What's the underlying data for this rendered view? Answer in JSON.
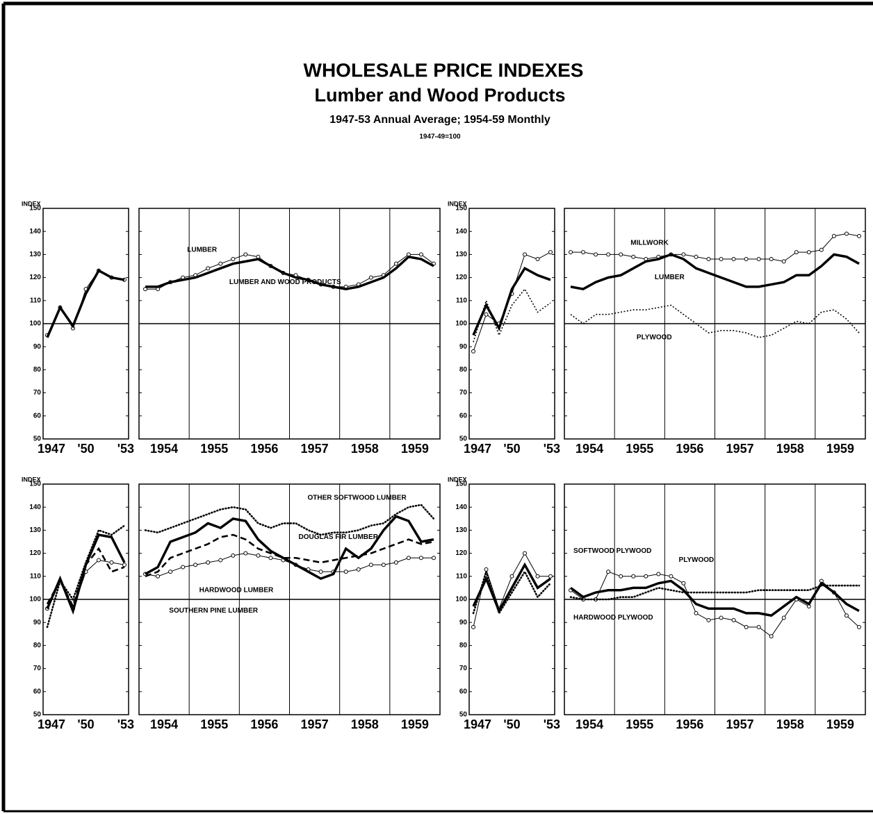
{
  "title": "WHOLESALE PRICE INDEXES",
  "subtitle": "Lumber and Wood Products",
  "period": "1947-53 Annual Average; 1954-59 Monthly",
  "base": "1947-49=100",
  "chart_data": [
    {
      "type": "line",
      "y_label": "INDEX",
      "ylim": [
        50,
        150
      ],
      "yticks": [
        50,
        60,
        70,
        80,
        90,
        100,
        110,
        120,
        130,
        140,
        150
      ],
      "baseline": 100,
      "categories": [
        "1947",
        null,
        null,
        "'50",
        null,
        null,
        "'53"
      ],
      "xlim": [
        1954,
        1960
      ],
      "xticks": [
        {
          "value": 1954.5,
          "label": "1954"
        },
        {
          "value": 1955.5,
          "label": "1955"
        },
        {
          "value": 1956.5,
          "label": "1956"
        },
        {
          "value": 1957.5,
          "label": "1957"
        },
        {
          "value": 1958.5,
          "label": "1958"
        },
        {
          "value": 1959.5,
          "label": "1959"
        }
      ],
      "xgrid": [
        1955,
        1956,
        1957,
        1958,
        1959
      ],
      "x": [
        1954.125,
        1954.375,
        1954.625,
        1954.875,
        1955.125,
        1955.375,
        1955.625,
        1955.875,
        1956.125,
        1956.375,
        1956.625,
        1956.875,
        1957.125,
        1957.375,
        1957.625,
        1957.875,
        1958.125,
        1958.375,
        1958.625,
        1958.875,
        1959.125,
        1959.375,
        1959.625,
        1959.875
      ],
      "series": [
        {
          "name": "LUMBER",
          "color": "#000000",
          "style": "circles",
          "annual_values": [
            95,
            107,
            98,
            115,
            123,
            120,
            119
          ],
          "values": [
            115,
            115,
            118,
            120,
            121,
            124,
            126,
            128,
            130,
            129,
            125,
            122,
            121,
            119,
            117,
            116,
            116,
            117,
            120,
            121,
            126,
            130,
            130,
            126
          ]
        },
        {
          "name": "LUMBER AND WOOD PRODUCTS",
          "color": "#000000",
          "style": "thick",
          "annual_values": [
            94,
            107,
            99,
            113,
            123,
            120,
            119
          ],
          "values": [
            116,
            116,
            118,
            119,
            120,
            122,
            124,
            126,
            127,
            128,
            125,
            122,
            120,
            119,
            117,
            116,
            115,
            116,
            118,
            120,
            124,
            129,
            128,
            125
          ]
        }
      ]
    },
    {
      "type": "line",
      "y_label": "INDEX",
      "ylim": [
        50,
        150
      ],
      "yticks": [
        50,
        60,
        70,
        80,
        90,
        100,
        110,
        120,
        130,
        140,
        150
      ],
      "baseline": 100,
      "categories": [
        "1947",
        null,
        null,
        "'50",
        null,
        null,
        "'53"
      ],
      "xlim": [
        1954,
        1960
      ],
      "xticks": [
        {
          "value": 1954.5,
          "label": "1954"
        },
        {
          "value": 1955.5,
          "label": "1955"
        },
        {
          "value": 1956.5,
          "label": "1956"
        },
        {
          "value": 1957.5,
          "label": "1957"
        },
        {
          "value": 1958.5,
          "label": "1958"
        },
        {
          "value": 1959.5,
          "label": "1959"
        }
      ],
      "xgrid": [
        1955,
        1956,
        1957,
        1958,
        1959
      ],
      "x": [
        1954.125,
        1954.375,
        1954.625,
        1954.875,
        1955.125,
        1955.375,
        1955.625,
        1955.875,
        1956.125,
        1956.375,
        1956.625,
        1956.875,
        1957.125,
        1957.375,
        1957.625,
        1957.875,
        1958.125,
        1958.375,
        1958.625,
        1958.875,
        1959.125,
        1959.375,
        1959.625,
        1959.875
      ],
      "series": [
        {
          "name": "MILLWORK",
          "color": "#000000",
          "style": "circles",
          "annual_values": [
            88,
            104,
            100,
            113,
            130,
            128,
            131
          ],
          "values": [
            131,
            131,
            130,
            130,
            130,
            129,
            128,
            129,
            130,
            130,
            129,
            128,
            128,
            128,
            128,
            128,
            128,
            127,
            131,
            131,
            132,
            138,
            139,
            138
          ]
        },
        {
          "name": "LUMBER",
          "color": "#000000",
          "style": "thick",
          "annual_values": [
            95,
            108,
            98,
            115,
            124,
            121,
            119
          ],
          "values": [
            116,
            115,
            118,
            120,
            121,
            124,
            127,
            128,
            130,
            128,
            124,
            122,
            120,
            118,
            116,
            116,
            117,
            118,
            121,
            121,
            125,
            130,
            129,
            126
          ]
        },
        {
          "name": "PLYWOOD",
          "color": "#000000",
          "style": "crosses",
          "annual_values": [
            92,
            110,
            95,
            108,
            115,
            105,
            109
          ],
          "values": [
            104,
            100,
            104,
            104,
            105,
            106,
            106,
            107,
            108,
            104,
            100,
            96,
            97,
            97,
            96,
            94,
            95,
            98,
            101,
            100,
            105,
            106,
            102,
            96
          ]
        }
      ]
    },
    {
      "type": "line",
      "y_label": "INDEX",
      "ylim": [
        50,
        150
      ],
      "yticks": [
        50,
        60,
        70,
        80,
        90,
        100,
        110,
        120,
        130,
        140,
        150
      ],
      "baseline": 100,
      "categories": [
        "1947",
        null,
        null,
        "'50",
        null,
        null,
        "'53"
      ],
      "xlim": [
        1954,
        1960
      ],
      "xticks": [
        {
          "value": 1954.5,
          "label": "1954"
        },
        {
          "value": 1955.5,
          "label": "1955"
        },
        {
          "value": 1956.5,
          "label": "1956"
        },
        {
          "value": 1957.5,
          "label": "1957"
        },
        {
          "value": 1958.5,
          "label": "1958"
        },
        {
          "value": 1959.5,
          "label": "1959"
        }
      ],
      "xgrid": [
        1955,
        1956,
        1957,
        1958,
        1959
      ],
      "x": [
        1954.125,
        1954.375,
        1954.625,
        1954.875,
        1955.125,
        1955.375,
        1955.625,
        1955.875,
        1956.125,
        1956.375,
        1956.625,
        1956.875,
        1957.125,
        1957.375,
        1957.625,
        1957.875,
        1958.125,
        1958.375,
        1958.625,
        1958.875,
        1959.125,
        1959.375,
        1959.625,
        1959.875
      ],
      "series": [
        {
          "name": "OTHER SOFTWOOD LUMBER",
          "color": "#000000",
          "style": "dotted",
          "annual_values": [
            88,
            108,
            100,
            116,
            130,
            128,
            132
          ],
          "values": [
            130,
            129,
            131,
            133,
            135,
            137,
            139,
            140,
            139,
            133,
            131,
            133,
            133,
            130,
            128,
            129,
            129,
            130,
            132,
            133,
            137,
            140,
            141,
            135
          ]
        },
        {
          "name": "DOUGLAS FIR LUMBER",
          "color": "#000000",
          "style": "dashed",
          "annual_values": [
            98,
            108,
            97,
            115,
            122,
            112,
            114
          ],
          "values": [
            110,
            112,
            118,
            120,
            122,
            124,
            127,
            128,
            126,
            122,
            120,
            118,
            118,
            117,
            116,
            117,
            118,
            119,
            120,
            122,
            124,
            126,
            124,
            125
          ]
        },
        {
          "name": "HARDWOOD LUMBER",
          "color": "#000000",
          "style": "circles",
          "annual_values": [
            96,
            108,
            96,
            112,
            117,
            116,
            115
          ],
          "values": [
            111,
            110,
            112,
            114,
            115,
            116,
            117,
            119,
            120,
            119,
            118,
            117,
            115,
            113,
            112,
            112,
            112,
            113,
            115,
            115,
            116,
            118,
            118,
            118
          ]
        },
        {
          "name": "SOUTHERN PINE LUMBER",
          "color": "#000000",
          "style": "thick",
          "annual_values": [
            96,
            109,
            95,
            115,
            128,
            127,
            116
          ],
          "values": [
            111,
            114,
            125,
            127,
            129,
            133,
            131,
            135,
            134,
            126,
            121,
            118,
            115,
            112,
            109,
            111,
            122,
            118,
            122,
            130,
            136,
            134,
            125,
            126
          ]
        }
      ]
    },
    {
      "type": "line",
      "y_label": "INDEX",
      "ylim": [
        50,
        150
      ],
      "yticks": [
        50,
        60,
        70,
        80,
        90,
        100,
        110,
        120,
        130,
        140,
        150
      ],
      "baseline": 100,
      "categories": [
        "1947",
        null,
        null,
        "'50",
        null,
        null,
        "'53"
      ],
      "xlim": [
        1954,
        1960
      ],
      "xticks": [
        {
          "value": 1954.5,
          "label": "1954"
        },
        {
          "value": 1955.5,
          "label": "1955"
        },
        {
          "value": 1956.5,
          "label": "1956"
        },
        {
          "value": 1957.5,
          "label": "1957"
        },
        {
          "value": 1958.5,
          "label": "1958"
        },
        {
          "value": 1959.5,
          "label": "1959"
        }
      ],
      "xgrid": [
        1955,
        1956,
        1957,
        1958,
        1959
      ],
      "x": [
        1954.125,
        1954.375,
        1954.625,
        1954.875,
        1955.125,
        1955.375,
        1955.625,
        1955.875,
        1956.125,
        1956.375,
        1956.625,
        1956.875,
        1957.125,
        1957.375,
        1957.625,
        1957.875,
        1958.125,
        1958.375,
        1958.625,
        1958.875,
        1959.125,
        1959.375,
        1959.625,
        1959.875
      ],
      "series": [
        {
          "name": "SOFTWOOD PLYWOOD",
          "color": "#000000",
          "style": "circles",
          "annual_values": [
            88,
            113,
            96,
            110,
            120,
            110,
            110
          ],
          "values": [
            104,
            100,
            100,
            112,
            110,
            110,
            110,
            111,
            110,
            107,
            94,
            91,
            92,
            91,
            88,
            88,
            84,
            92,
            100,
            97,
            108,
            103,
            93,
            88
          ]
        },
        {
          "name": "PLYWOOD",
          "color": "#000000",
          "style": "thick",
          "annual_values": [
            97,
            109,
            95,
            105,
            115,
            105,
            109
          ],
          "values": [
            105,
            101,
            103,
            104,
            104,
            105,
            105,
            107,
            108,
            104,
            98,
            96,
            96,
            96,
            94,
            94,
            93,
            97,
            101,
            98,
            107,
            103,
            98,
            95
          ]
        },
        {
          "name": "HARDWOOD PLYWOOD",
          "color": "#000000",
          "style": "dotted",
          "annual_values": [
            94,
            112,
            94,
            103,
            112,
            101,
            107
          ],
          "values": [
            101,
            100,
            100,
            100,
            101,
            101,
            103,
            105,
            104,
            103,
            103,
            103,
            103,
            103,
            103,
            104,
            104,
            104,
            104,
            104,
            106,
            106,
            106,
            106
          ]
        }
      ]
    }
  ]
}
